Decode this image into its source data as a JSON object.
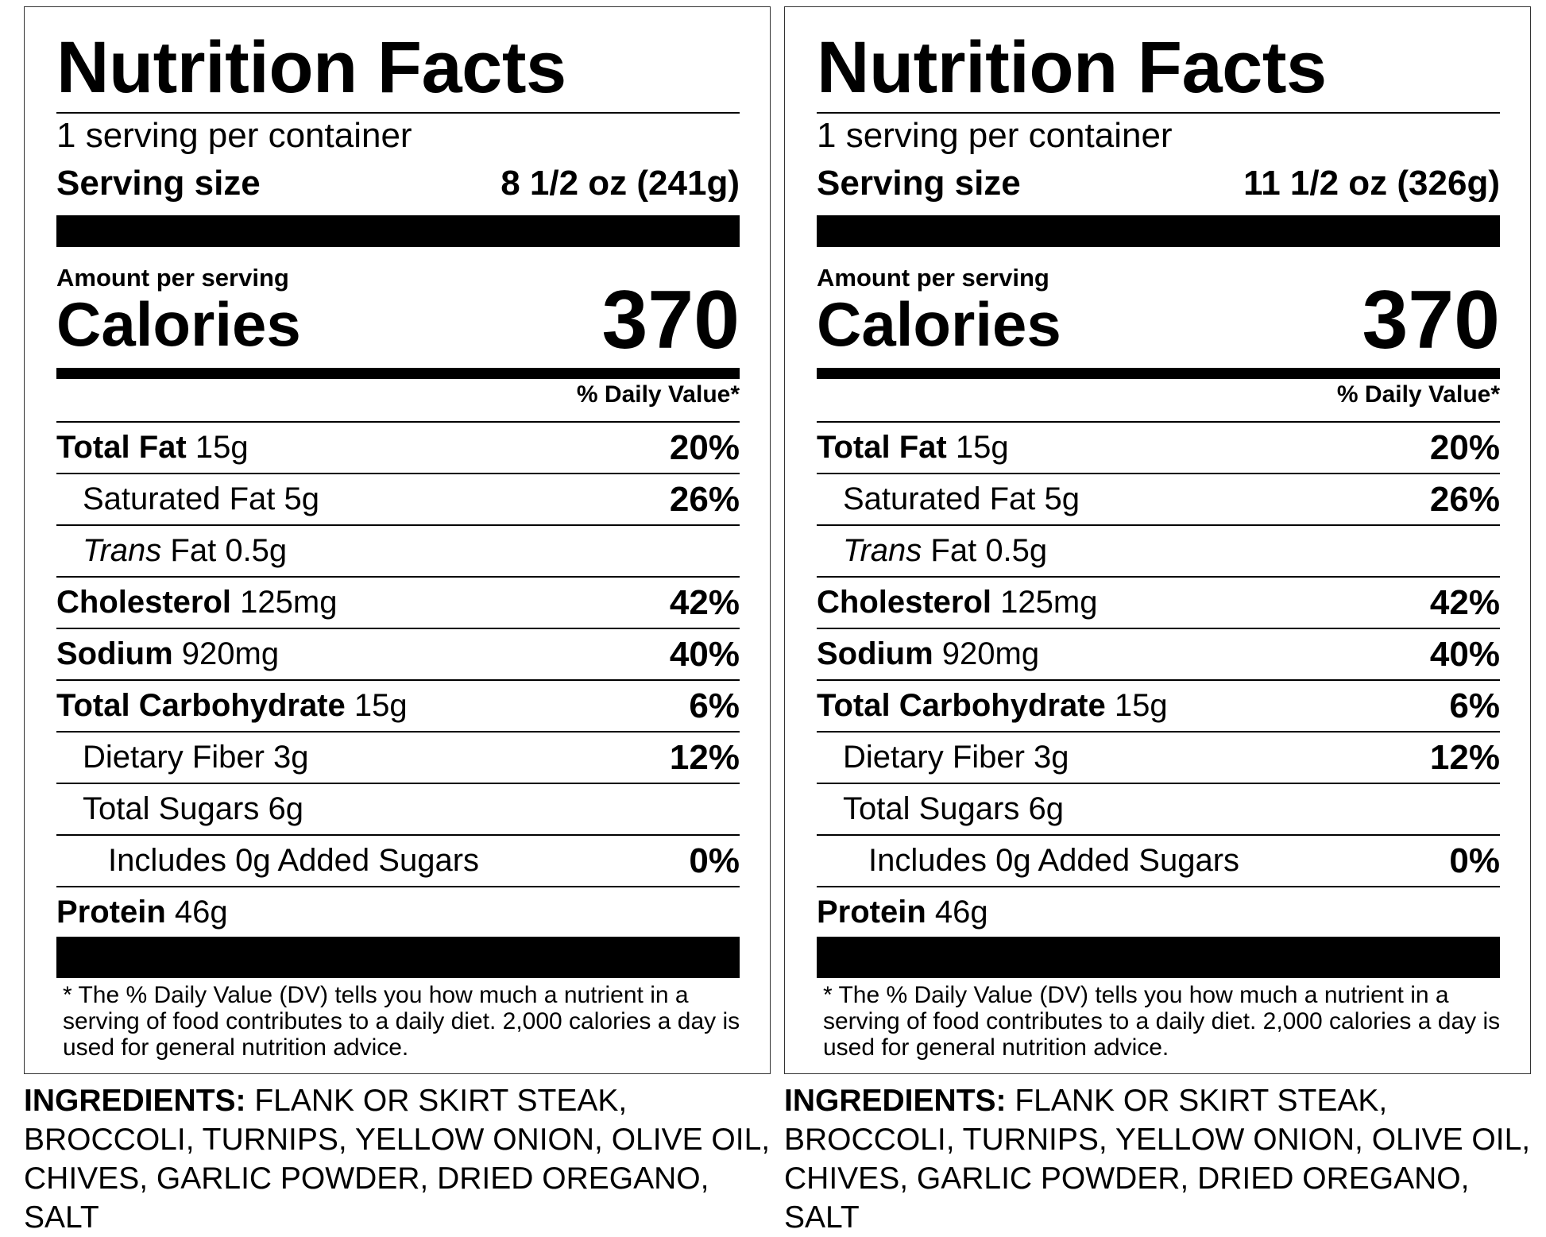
{
  "labels": [
    {
      "title": "Nutrition Facts",
      "servings_per_container": "1 serving per container",
      "serving_size_label": "Serving size",
      "serving_size_value": "8 1/2 oz (241g)",
      "amount_per_serving": "Amount per serving",
      "calories_label": "Calories",
      "calories_value": "370",
      "daily_value_header": "% Daily Value*",
      "nutrients": {
        "total_fat": {
          "label": "Total Fat",
          "amount": "15g",
          "dv": "20%"
        },
        "saturated_fat": {
          "label": "Saturated Fat 5g",
          "dv": "26%"
        },
        "trans_fat": {
          "italic": "Trans",
          "label": "Fat 0.5g"
        },
        "cholesterol": {
          "label": "Cholesterol",
          "amount": "125mg",
          "dv": "42%"
        },
        "sodium": {
          "label": "Sodium",
          "amount": "920mg",
          "dv": "40%"
        },
        "total_carbohydrate": {
          "label": "Total Carbohydrate",
          "amount": "15g",
          "dv": "6%"
        },
        "dietary_fiber": {
          "label": "Dietary Fiber 3g",
          "dv": "12%"
        },
        "total_sugars": {
          "label": "Total Sugars 6g"
        },
        "added_sugars": {
          "label": "Includes 0g Added Sugars",
          "dv": "0%"
        },
        "protein": {
          "label": "Protein",
          "amount": "46g"
        }
      },
      "footnote": "* The % Daily Value (DV) tells you how much a nutrient in a serving of food contributes to a daily diet. 2,000 calories a day is used for general nutrition advice.",
      "ingredients_label": "INGREDIENTS:",
      "ingredients_text": "FLANK OR SKIRT STEAK, BROCCOLI, TURNIPS, YELLOW ONION, OLIVE OIL, CHIVES, GARLIC POWDER, DRIED OREGANO, SALT"
    },
    {
      "title": "Nutrition Facts",
      "servings_per_container": "1 serving per container",
      "serving_size_label": "Serving size",
      "serving_size_value": "11 1/2 oz (326g)",
      "amount_per_serving": "Amount per serving",
      "calories_label": "Calories",
      "calories_value": "370",
      "daily_value_header": "% Daily Value*",
      "nutrients": {
        "total_fat": {
          "label": "Total Fat",
          "amount": "15g",
          "dv": "20%"
        },
        "saturated_fat": {
          "label": "Saturated Fat 5g",
          "dv": "26%"
        },
        "trans_fat": {
          "italic": "Trans",
          "label": "Fat 0.5g"
        },
        "cholesterol": {
          "label": "Cholesterol",
          "amount": "125mg",
          "dv": "42%"
        },
        "sodium": {
          "label": "Sodium",
          "amount": "920mg",
          "dv": "40%"
        },
        "total_carbohydrate": {
          "label": "Total Carbohydrate",
          "amount": "15g",
          "dv": "6%"
        },
        "dietary_fiber": {
          "label": "Dietary Fiber 3g",
          "dv": "12%"
        },
        "total_sugars": {
          "label": "Total Sugars 6g"
        },
        "added_sugars": {
          "label": "Includes 0g Added Sugars",
          "dv": "0%"
        },
        "protein": {
          "label": "Protein",
          "amount": "46g"
        }
      },
      "footnote": "* The % Daily Value (DV) tells you how much a nutrient in a serving of food contributes to a daily diet. 2,000 calories a day is used for general nutrition advice.",
      "ingredients_label": "INGREDIENTS:",
      "ingredients_text": "FLANK OR SKIRT STEAK, BROCCOLI, TURNIPS, YELLOW ONION, OLIVE OIL, CHIVES, GARLIC POWDER, DRIED OREGANO, SALT"
    }
  ]
}
